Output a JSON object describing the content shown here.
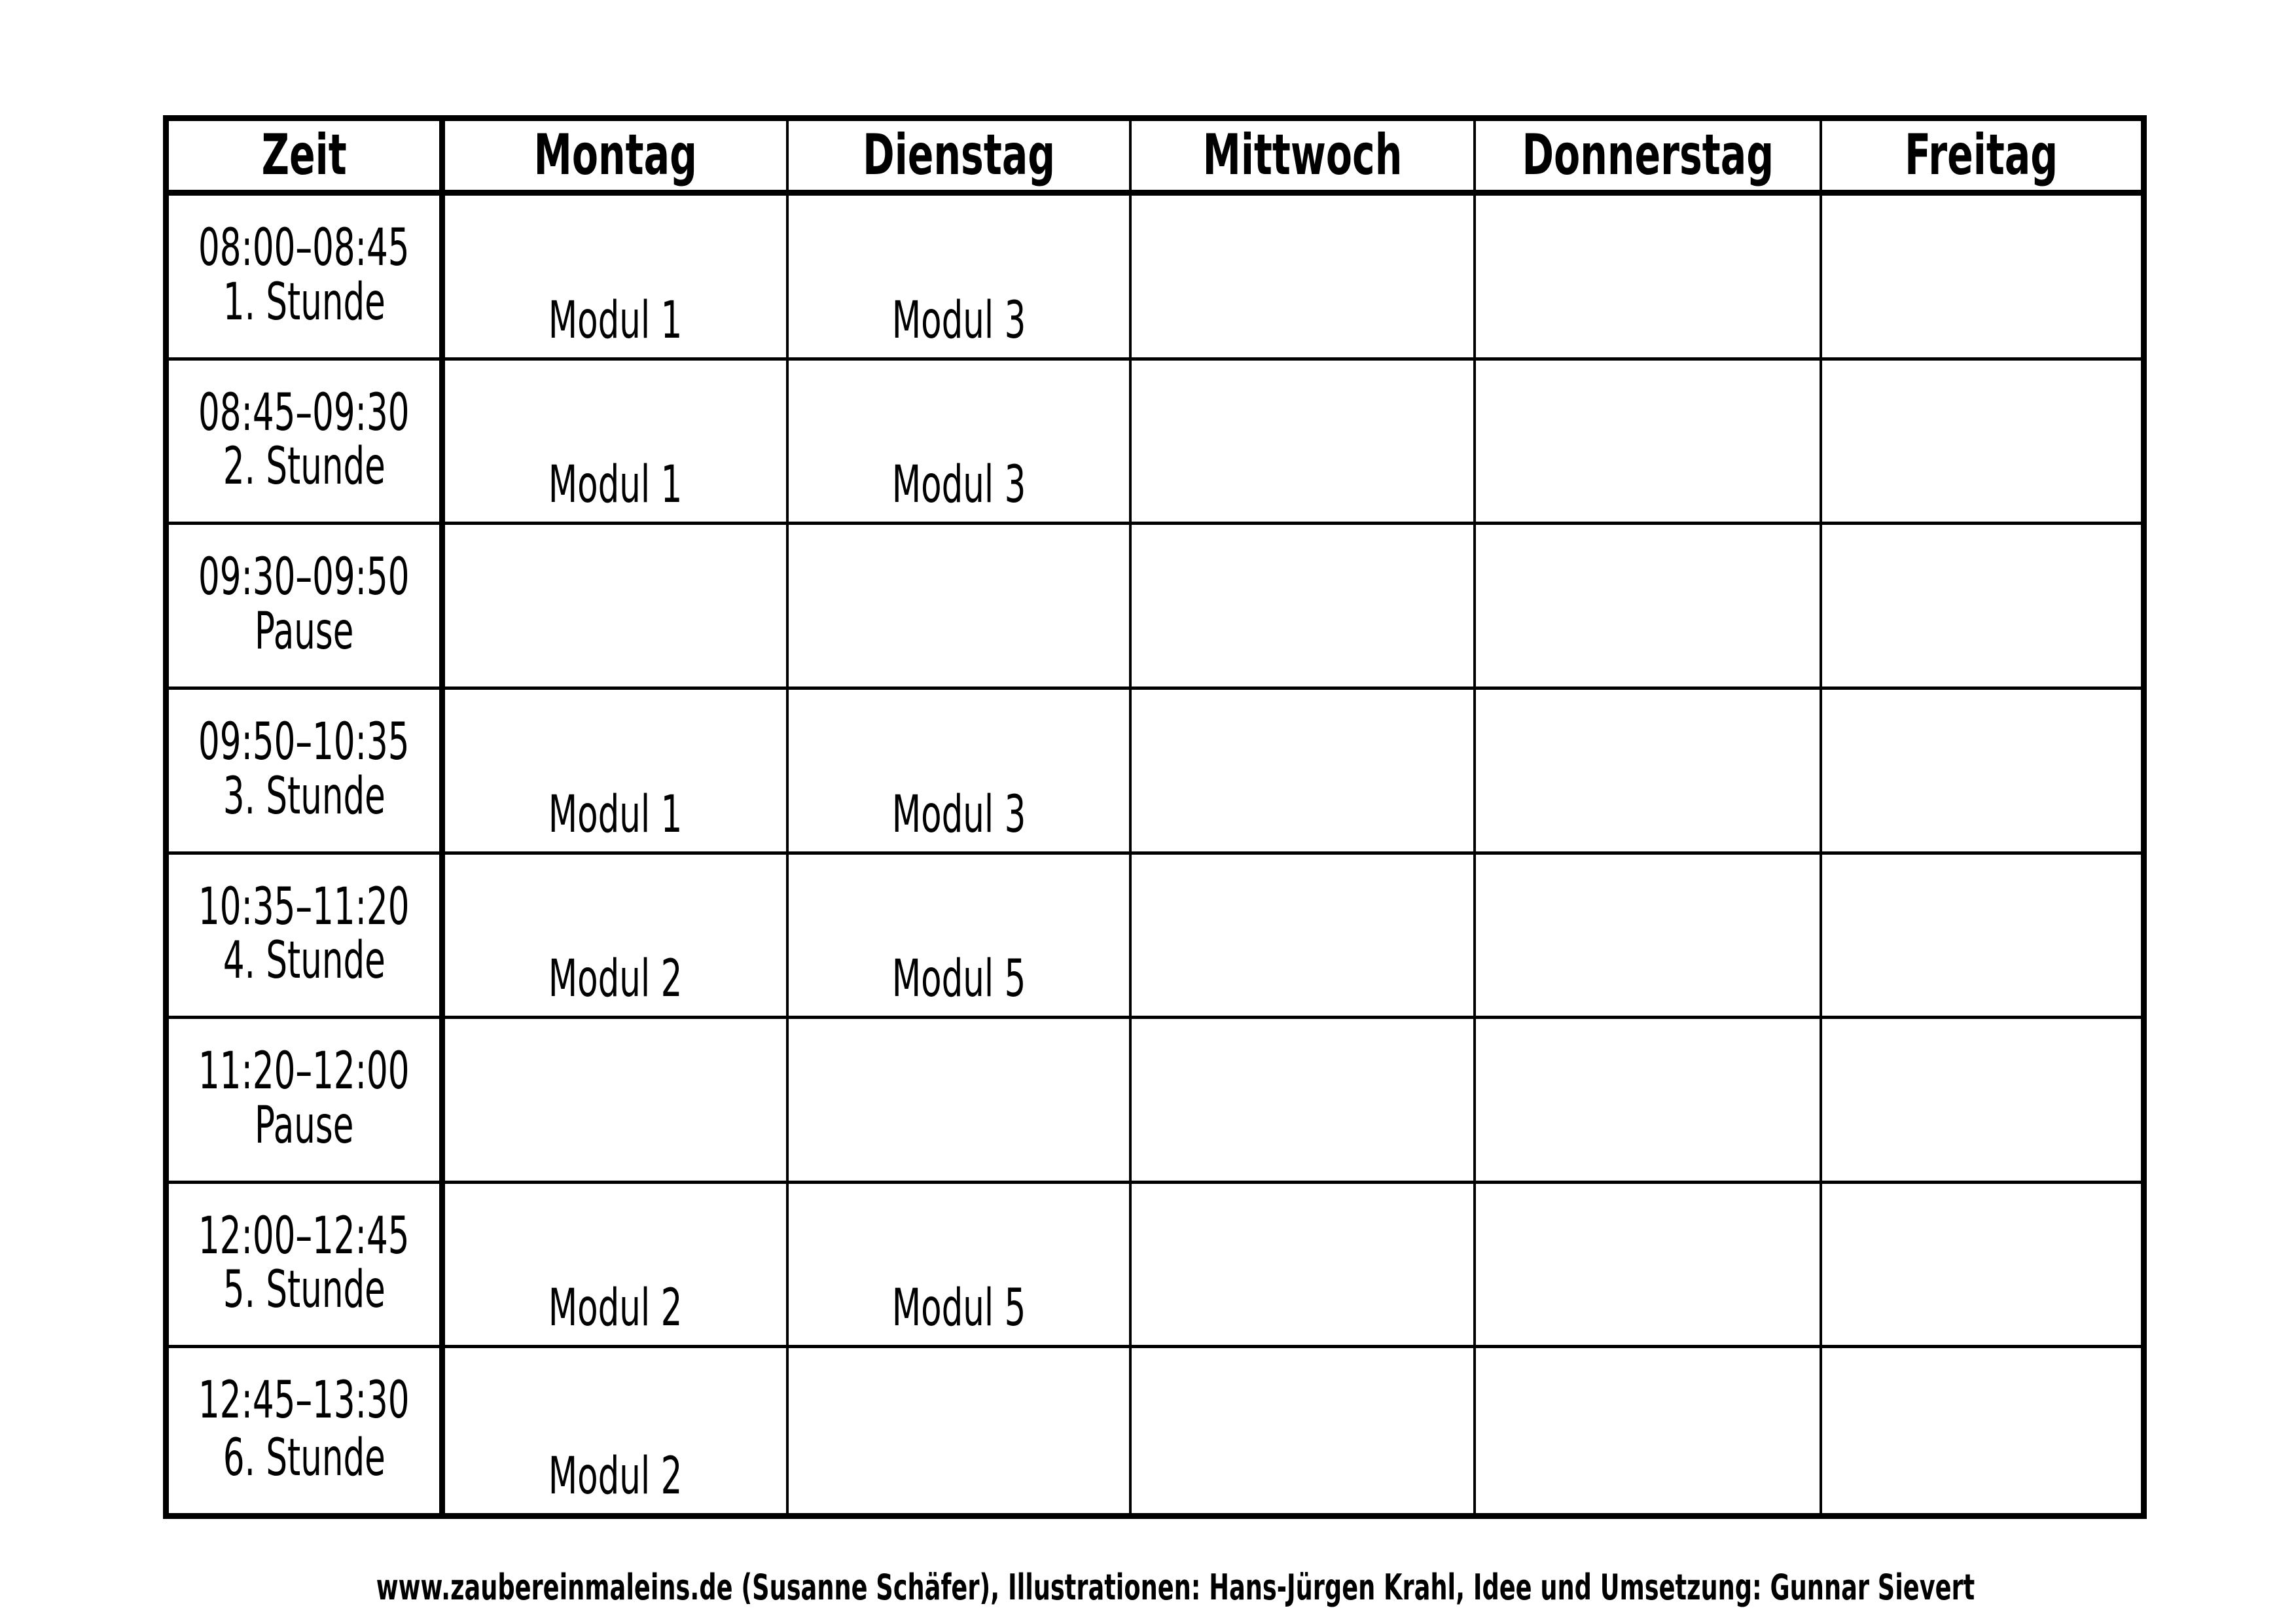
{
  "page": {
    "ink_color": "#000000",
    "paper_color": "#ffffff",
    "footer_credit": "www.zaubereinmaleins.de (Susanne Schäfer), Illustrationen: Hans-Jürgen Krahl, Idee und Umsetzung: Gunnar Sievert"
  },
  "timetable": {
    "columns": {
      "zeit": "Zeit",
      "montag": "Montag",
      "dienstag": "Dienstag",
      "mittwoch": "Mittwoch",
      "donnerstag": "Donnerstag",
      "freitag": "Freitag"
    },
    "rows": [
      {
        "time": "08:00–08:45",
        "label": "1. Stunde",
        "days": [
          "Modul 1",
          "Modul 3",
          "",
          "",
          ""
        ]
      },
      {
        "time": "08:45–09:30",
        "label": "2. Stunde",
        "days": [
          "Modul 1",
          "Modul 3",
          "",
          "",
          ""
        ]
      },
      {
        "time": "09:30–09:50",
        "label": "Pause",
        "days": [
          "",
          "",
          "",
          "",
          ""
        ]
      },
      {
        "time": "09:50–10:35",
        "label": "3. Stunde",
        "days": [
          "Modul 1",
          "Modul 3",
          "",
          "",
          ""
        ]
      },
      {
        "time": "10:35–11:20",
        "label": "4. Stunde",
        "days": [
          "Modul 2",
          "Modul 5",
          "",
          "",
          ""
        ]
      },
      {
        "time": "11:20–12:00",
        "label": "Pause",
        "days": [
          "",
          "",
          "",
          "",
          ""
        ]
      },
      {
        "time": "12:00–12:45",
        "label": "5. Stunde",
        "days": [
          "Modul 2",
          "Modul 5",
          "",
          "",
          ""
        ]
      },
      {
        "time": "12:45–13:30",
        "label": "6. Stunde",
        "days": [
          "Modul 2",
          "",
          "",
          "",
          ""
        ]
      }
    ]
  }
}
